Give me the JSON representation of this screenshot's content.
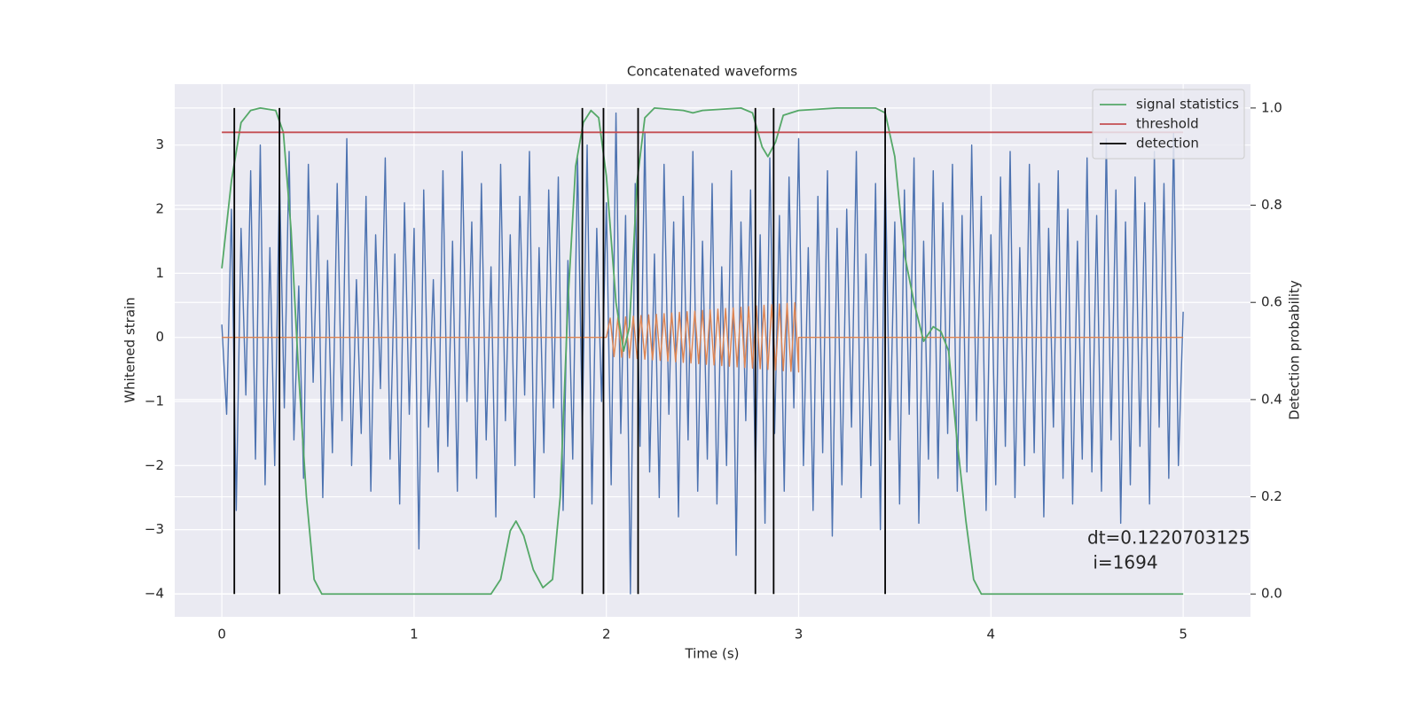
{
  "chart_data": {
    "type": "line",
    "title": "Concatenated waveforms",
    "xlabel": "Time (s)",
    "ylabel": "Whitened strain",
    "y2label": "Detection probability",
    "xlim": [
      -0.245,
      5.35
    ],
    "ylim": [
      -4.36,
      3.95
    ],
    "y2lim": [
      -0.047,
      1.049
    ],
    "xticks": [
      0,
      1,
      2,
      3,
      4,
      5
    ],
    "yticks": [
      {
        "value": -4,
        "label": "−4"
      },
      {
        "value": -3,
        "label": "−3"
      },
      {
        "value": -2,
        "label": "−2"
      },
      {
        "value": -1,
        "label": "−1"
      },
      0,
      1,
      2,
      3
    ],
    "y2ticks": [
      {
        "value": 0,
        "label": "0.0"
      },
      {
        "value": 0.2,
        "label": "0.2"
      },
      {
        "value": 0.4,
        "label": "0.4"
      },
      {
        "value": 0.6,
        "label": "0.6"
      },
      {
        "value": 0.8,
        "label": "0.8"
      },
      {
        "value": 1,
        "label": "1.0"
      }
    ],
    "grid": true,
    "legend": "upper right",
    "annotation": [
      "dt=0.1220703125",
      " i=1694"
    ],
    "series": [
      {
        "color": "#4c72b0",
        "x": [
          0,
          0.025,
          0.05,
          0.075,
          0.1,
          0.125,
          0.15,
          0.175,
          0.2,
          0.225,
          0.25,
          0.275,
          0.3,
          0.325,
          0.35,
          0.375,
          0.4,
          0.425,
          0.45,
          0.475,
          0.5,
          0.525,
          0.55,
          0.575,
          0.6,
          0.625,
          0.65,
          0.675,
          0.7,
          0.725,
          0.75,
          0.775,
          0.8,
          0.825,
          0.85,
          0.875,
          0.9,
          0.925,
          0.95,
          0.975,
          1,
          1.025,
          1.05,
          1.075,
          1.1,
          1.125,
          1.15,
          1.175,
          1.2,
          1.225,
          1.25,
          1.275,
          1.3,
          1.325,
          1.35,
          1.375,
          1.4,
          1.425,
          1.45,
          1.475,
          1.5,
          1.525,
          1.55,
          1.575,
          1.6,
          1.625,
          1.65,
          1.675,
          1.7,
          1.725,
          1.75,
          1.775,
          1.8,
          1.825,
          1.85,
          1.875,
          1.9,
          1.925,
          1.95,
          1.975,
          2,
          2.025,
          2.05,
          2.075,
          2.1,
          2.125,
          2.15,
          2.175,
          2.2,
          2.225,
          2.25,
          2.275,
          2.3,
          2.325,
          2.35,
          2.375,
          2.4,
          2.425,
          2.45,
          2.475,
          2.5,
          2.525,
          2.55,
          2.575,
          2.6,
          2.625,
          2.65,
          2.675,
          2.7,
          2.725,
          2.75,
          2.775,
          2.8,
          2.825,
          2.85,
          2.875,
          2.9,
          2.925,
          2.95,
          2.975,
          3,
          3.025,
          3.05,
          3.075,
          3.1,
          3.125,
          3.15,
          3.175,
          3.2,
          3.225,
          3.25,
          3.275,
          3.3,
          3.325,
          3.35,
          3.375,
          3.4,
          3.425,
          3.45,
          3.475,
          3.5,
          3.525,
          3.55,
          3.575,
          3.6,
          3.625,
          3.65,
          3.675,
          3.7,
          3.725,
          3.75,
          3.775,
          3.8,
          3.825,
          3.85,
          3.875,
          3.9,
          3.925,
          3.95,
          3.975,
          4,
          4.025,
          4.05,
          4.075,
          4.1,
          4.125,
          4.15,
          4.175,
          4.2,
          4.225,
          4.25,
          4.275,
          4.3,
          4.325,
          4.35,
          4.375,
          4.4,
          4.425,
          4.45,
          4.475,
          4.5,
          4.525,
          4.55,
          4.575,
          4.6,
          4.625,
          4.65,
          4.675,
          4.7,
          4.725,
          4.75,
          4.775,
          4.8,
          4.825,
          4.85,
          4.875,
          4.9,
          4.925,
          4.95,
          4.975,
          5
        ],
        "values": [
          0.2,
          -1.2,
          2.0,
          -2.7,
          1.7,
          -0.9,
          2.6,
          -1.9,
          3.0,
          -2.3,
          1.4,
          -2.0,
          2.5,
          -1.1,
          2.9,
          -1.6,
          0.8,
          -2.2,
          2.7,
          -0.7,
          1.9,
          -2.5,
          1.2,
          -1.8,
          2.4,
          -1.3,
          3.1,
          -2.0,
          0.9,
          -1.5,
          2.2,
          -2.4,
          1.6,
          -0.8,
          2.8,
          -1.9,
          1.3,
          -2.6,
          2.1,
          -1.2,
          1.7,
          -3.3,
          2.3,
          -1.4,
          0.9,
          -2.1,
          2.6,
          -1.7,
          1.5,
          -2.4,
          2.9,
          -1.0,
          1.8,
          -2.2,
          2.4,
          -1.6,
          1.1,
          -2.8,
          2.7,
          -1.3,
          1.6,
          -2.0,
          2.2,
          -0.9,
          2.9,
          -2.5,
          1.4,
          -1.8,
          2.3,
          -1.1,
          2.5,
          -2.7,
          1.2,
          -1.9,
          2.8,
          -1.4,
          3.0,
          -2.6,
          1.7,
          -1.0,
          2.1,
          -2.3,
          3.5,
          -1.5,
          1.9,
          -4.0,
          2.4,
          -1.7,
          3.2,
          -2.1,
          1.3,
          -2.5,
          2.7,
          -1.2,
          1.8,
          -2.8,
          2.2,
          -1.6,
          2.9,
          -2.4,
          1.5,
          -1.9,
          2.4,
          -2.6,
          1.1,
          -2.0,
          2.6,
          -3.4,
          1.8,
          -1.3,
          2.3,
          -2.2,
          1.6,
          -2.9,
          2.8,
          -1.5,
          1.9,
          -2.4,
          2.5,
          -1.1,
          3.1,
          -2.0,
          1.4,
          -2.7,
          2.2,
          -1.8,
          2.6,
          -3.1,
          1.7,
          -2.3,
          2.0,
          -1.4,
          2.9,
          -2.5,
          1.3,
          -2.0,
          2.4,
          -3.0,
          2.7,
          -1.6,
          1.8,
          -2.6,
          2.3,
          -1.2,
          2.8,
          -2.9,
          1.5,
          -1.9,
          2.6,
          -2.2,
          2.1,
          -1.5,
          2.7,
          -2.4,
          1.9,
          -2.1,
          3.0,
          -1.3,
          2.2,
          -2.7,
          1.6,
          -2.3,
          2.5,
          -1.7,
          2.9,
          -2.5,
          1.4,
          -2.0,
          2.7,
          -1.8,
          2.4,
          -2.8,
          1.7,
          -1.4,
          2.6,
          -2.2,
          2.0,
          -2.6,
          1.5,
          -1.9,
          2.8,
          -2.1,
          1.9,
          -2.4,
          3.1,
          -1.6,
          2.3,
          -2.9,
          1.8,
          -2.3,
          2.5,
          -1.7,
          2.1,
          -2.6,
          2.9,
          -1.4,
          2.4,
          -2.2,
          3.2,
          -2.0,
          0.4
        ]
      },
      {
        "color": "#dd8452",
        "x": [
          0,
          2,
          2.02,
          2.04,
          2.06,
          2.08,
          2.1,
          2.12,
          2.14,
          2.16,
          2.18,
          2.2,
          2.22,
          2.24,
          2.26,
          2.28,
          2.3,
          2.32,
          2.34,
          2.36,
          2.38,
          2.4,
          2.42,
          2.44,
          2.46,
          2.48,
          2.5,
          2.52,
          2.54,
          2.56,
          2.58,
          2.6,
          2.62,
          2.64,
          2.66,
          2.68,
          2.7,
          2.72,
          2.74,
          2.76,
          2.78,
          2.8,
          2.82,
          2.84,
          2.86,
          2.88,
          2.9,
          2.92,
          2.94,
          2.96,
          2.98,
          3,
          3,
          5
        ],
        "values": [
          0,
          0,
          0.3,
          -0.3,
          0.31,
          -0.31,
          0.32,
          -0.32,
          0.33,
          -0.33,
          0.34,
          -0.34,
          0.35,
          -0.35,
          0.36,
          -0.36,
          0.37,
          -0.37,
          0.38,
          -0.38,
          0.39,
          -0.39,
          0.4,
          -0.4,
          0.41,
          -0.41,
          0.42,
          -0.42,
          0.43,
          -0.43,
          0.44,
          -0.44,
          0.45,
          -0.45,
          0.46,
          -0.46,
          0.47,
          -0.47,
          0.48,
          -0.48,
          0.49,
          -0.49,
          0.5,
          -0.5,
          0.51,
          -0.51,
          0.52,
          -0.52,
          0.53,
          -0.53,
          0.54,
          -0.54,
          0,
          0
        ]
      },
      {
        "name": "signal statistics",
        "color": "#55a868",
        "axis": "y2",
        "x": [
          0,
          0.05,
          0.1,
          0.15,
          0.2,
          0.28,
          0.32,
          0.36,
          0.4,
          0.44,
          0.48,
          0.52,
          0.7,
          1,
          1.4,
          1.45,
          1.5,
          1.53,
          1.57,
          1.62,
          1.67,
          1.72,
          1.76,
          1.8,
          1.84,
          1.88,
          1.92,
          1.96,
          2,
          2.05,
          2.09,
          2.12,
          2.16,
          2.2,
          2.25,
          2.4,
          2.45,
          2.5,
          2.7,
          2.76,
          2.81,
          2.84,
          2.88,
          2.92,
          3,
          3.2,
          3.4,
          3.45,
          3.5,
          3.55,
          3.6,
          3.65,
          3.7,
          3.74,
          3.78,
          3.82,
          3.87,
          3.91,
          3.95,
          4.5,
          5
        ],
        "values": [
          0.67,
          0.85,
          0.97,
          0.995,
          1,
          0.995,
          0.95,
          0.75,
          0.45,
          0.2,
          0.03,
          0,
          0,
          0,
          0,
          0.03,
          0.13,
          0.15,
          0.12,
          0.05,
          0.013,
          0.03,
          0.2,
          0.6,
          0.88,
          0.97,
          0.995,
          0.98,
          0.86,
          0.6,
          0.5,
          0.55,
          0.85,
          0.98,
          1,
          0.995,
          0.99,
          0.995,
          1,
          0.99,
          0.92,
          0.9,
          0.93,
          0.985,
          0.995,
          1,
          1,
          0.99,
          0.9,
          0.7,
          0.6,
          0.52,
          0.55,
          0.54,
          0.5,
          0.33,
          0.15,
          0.03,
          0,
          0,
          0
        ]
      },
      {
        "name": "threshold",
        "color": "#c44e52",
        "axis": "y2",
        "x": [
          0,
          5
        ],
        "values": [
          0.95,
          0.95
        ]
      }
    ],
    "detection": {
      "name": "detection",
      "color": "#000000",
      "axis": "y2",
      "x": [
        0.065,
        0.3,
        1.875,
        1.985,
        2.165,
        2.775,
        2.87,
        3.45
      ],
      "ymin": 0,
      "ymax": 1
    }
  }
}
